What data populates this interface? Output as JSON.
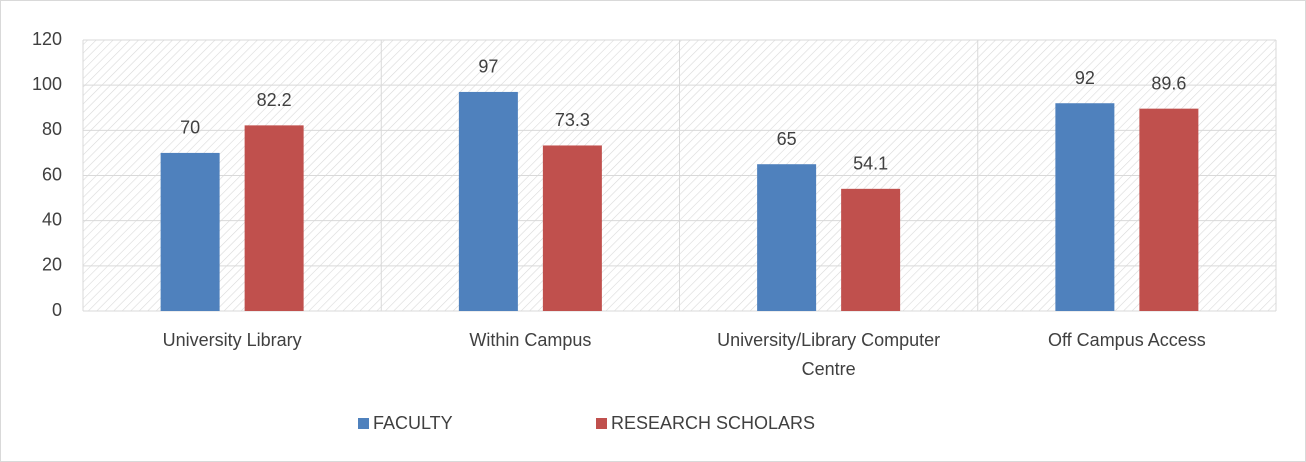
{
  "chart_data": {
    "type": "bar",
    "categories": [
      "University Library",
      "Within Campus",
      "University/Library Computer Centre",
      "Off Campus Access"
    ],
    "series": [
      {
        "name": "FACULTY",
        "color": "#4f81bd",
        "values": [
          70,
          97,
          65,
          92
        ]
      },
      {
        "name": "RESEARCH SCHOLARS",
        "color": "#c0504d",
        "values": [
          82.2,
          73.3,
          54.1,
          89.6
        ]
      }
    ],
    "ylim": [
      0,
      120
    ],
    "yticks": [
      0,
      20,
      40,
      60,
      80,
      100,
      120
    ],
    "grid": true,
    "legend": "bottom"
  }
}
